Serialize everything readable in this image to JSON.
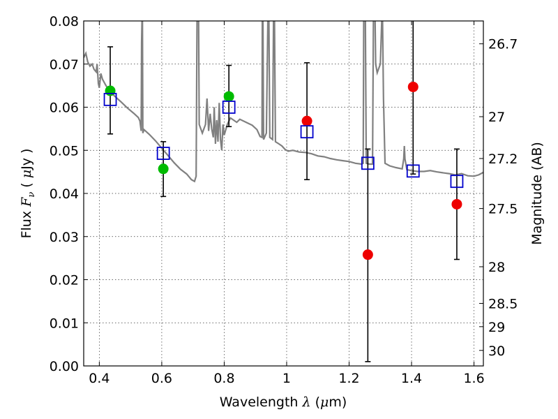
{
  "chart_data": {
    "type": "scatter",
    "title": "",
    "xlabel": "Wavelength  λ (μm)",
    "xlabel_parts": {
      "prefix": "Wavelength  ",
      "lambda": "λ",
      "unit_open": " (",
      "mu": "μ",
      "unit_rest": "m)"
    },
    "ylabel_parts": {
      "prefix": "Flux  ",
      "F": "F",
      "nu": "ν",
      "unit_open": "  ( ",
      "mu": "μ",
      "unit_rest": "Jy )"
    },
    "y2label": "Magnitude (AB)",
    "xlim": [
      0.35,
      1.63
    ],
    "ylim": [
      0,
      0.08
    ],
    "grid": true,
    "xticks": [
      0.4,
      0.6,
      0.8,
      1.0,
      1.2,
      1.4,
      1.6
    ],
    "xtick_labels": [
      "0.4",
      "0.6",
      "0.8",
      "1",
      "1.2",
      "1.4",
      "1.6"
    ],
    "yticks": [
      0,
      0.01,
      0.02,
      0.03,
      0.04,
      0.05,
      0.06,
      0.07,
      0.08
    ],
    "ytick_labels": [
      "0.00",
      "0.01",
      "0.02",
      "0.03",
      "0.04",
      "0.05",
      "0.06",
      "0.07",
      "0.08"
    ],
    "y2ticks": [
      {
        "label": "26.7",
        "flux": 0.0747
      },
      {
        "label": "27",
        "flux": 0.0578
      },
      {
        "label": "27.2",
        "flux": 0.0481
      },
      {
        "label": "27.5",
        "flux": 0.0365
      },
      {
        "label": "28",
        "flux": 0.023
      },
      {
        "label": "28.5",
        "flux": 0.0145
      },
      {
        "label": "29",
        "flux": 0.0091
      },
      {
        "label": "30",
        "flux": 0.0036
      }
    ],
    "colors": {
      "spectrum": "#808080",
      "model": "#0000cc",
      "green": "#00bb00",
      "red": "#ee0000",
      "errorbar": "#000000"
    },
    "spectrum": [
      [
        0.35,
        0.0715
      ],
      [
        0.357,
        0.0725
      ],
      [
        0.363,
        0.0705
      ],
      [
        0.37,
        0.0695
      ],
      [
        0.377,
        0.07
      ],
      [
        0.383,
        0.0688
      ],
      [
        0.39,
        0.0682
      ],
      [
        0.393,
        0.07
      ],
      [
        0.397,
        0.0655
      ],
      [
        0.4,
        0.0645
      ],
      [
        0.405,
        0.0678
      ],
      [
        0.41,
        0.0665
      ],
      [
        0.42,
        0.0652
      ],
      [
        0.43,
        0.064
      ],
      [
        0.45,
        0.0625
      ],
      [
        0.47,
        0.0612
      ],
      [
        0.49,
        0.0598
      ],
      [
        0.51,
        0.0586
      ],
      [
        0.525,
        0.0576
      ],
      [
        0.53,
        0.0568
      ],
      [
        0.534,
        0.0545
      ],
      [
        0.5355,
        0.075
      ],
      [
        0.537,
        0.081
      ],
      [
        0.538,
        0.081
      ],
      [
        0.5395,
        0.054
      ],
      [
        0.543,
        0.0548
      ],
      [
        0.56,
        0.0537
      ],
      [
        0.58,
        0.0522
      ],
      [
        0.6,
        0.0505
      ],
      [
        0.62,
        0.0488
      ],
      [
        0.64,
        0.0471
      ],
      [
        0.66,
        0.0456
      ],
      [
        0.68,
        0.0445
      ],
      [
        0.695,
        0.0432
      ],
      [
        0.705,
        0.0428
      ],
      [
        0.71,
        0.044
      ],
      [
        0.713,
        0.081
      ],
      [
        0.718,
        0.081
      ],
      [
        0.72,
        0.056
      ],
      [
        0.73,
        0.054
      ],
      [
        0.74,
        0.056
      ],
      [
        0.745,
        0.062
      ],
      [
        0.75,
        0.0545
      ],
      [
        0.755,
        0.0585
      ],
      [
        0.76,
        0.055
      ],
      [
        0.765,
        0.053
      ],
      [
        0.768,
        0.06
      ],
      [
        0.772,
        0.0515
      ],
      [
        0.776,
        0.057
      ],
      [
        0.78,
        0.052
      ],
      [
        0.784,
        0.061
      ],
      [
        0.788,
        0.0525
      ],
      [
        0.792,
        0.05
      ],
      [
        0.796,
        0.056
      ],
      [
        0.8,
        0.0535
      ],
      [
        0.81,
        0.056
      ],
      [
        0.82,
        0.0575
      ],
      [
        0.83,
        0.057
      ],
      [
        0.84,
        0.0565
      ],
      [
        0.85,
        0.0572
      ],
      [
        0.87,
        0.0565
      ],
      [
        0.89,
        0.0558
      ],
      [
        0.905,
        0.0548
      ],
      [
        0.915,
        0.0532
      ],
      [
        0.921,
        0.053
      ],
      [
        0.922,
        0.081
      ],
      [
        0.924,
        0.081
      ],
      [
        0.926,
        0.0525
      ],
      [
        0.935,
        0.054
      ],
      [
        0.94,
        0.081
      ],
      [
        0.943,
        0.081
      ],
      [
        0.946,
        0.053
      ],
      [
        0.955,
        0.0525
      ],
      [
        0.958,
        0.081
      ],
      [
        0.961,
        0.081
      ],
      [
        0.964,
        0.052
      ],
      [
        0.975,
        0.0515
      ],
      [
        0.985,
        0.051
      ],
      [
        0.995,
        0.0502
      ],
      [
        1.005,
        0.0498
      ],
      [
        1.02,
        0.05
      ],
      [
        1.04,
        0.0496
      ],
      [
        1.06,
        0.0495
      ],
      [
        1.08,
        0.0492
      ],
      [
        1.1,
        0.0487
      ],
      [
        1.12,
        0.0485
      ],
      [
        1.14,
        0.0481
      ],
      [
        1.16,
        0.0478
      ],
      [
        1.18,
        0.0476
      ],
      [
        1.2,
        0.0474
      ],
      [
        1.22,
        0.047
      ],
      [
        1.24,
        0.0468
      ],
      [
        1.245,
        0.047
      ],
      [
        1.247,
        0.081
      ],
      [
        1.252,
        0.081
      ],
      [
        1.255,
        0.047
      ],
      [
        1.265,
        0.0468
      ],
      [
        1.275,
        0.0468
      ],
      [
        1.278,
        0.081
      ],
      [
        1.283,
        0.081
      ],
      [
        1.285,
        0.07
      ],
      [
        1.29,
        0.068
      ],
      [
        1.3,
        0.07
      ],
      [
        1.305,
        0.081
      ],
      [
        1.307,
        0.081
      ],
      [
        1.31,
        0.062
      ],
      [
        1.315,
        0.047
      ],
      [
        1.33,
        0.0464
      ],
      [
        1.35,
        0.046
      ],
      [
        1.37,
        0.0457
      ],
      [
        1.375,
        0.048
      ],
      [
        1.377,
        0.051
      ],
      [
        1.379,
        0.048
      ],
      [
        1.385,
        0.0455
      ],
      [
        1.4,
        0.0453
      ],
      [
        1.42,
        0.0451
      ],
      [
        1.44,
        0.0451
      ],
      [
        1.46,
        0.0453
      ],
      [
        1.48,
        0.045
      ],
      [
        1.5,
        0.0448
      ],
      [
        1.52,
        0.0446
      ],
      [
        1.54,
        0.0443
      ],
      [
        1.56,
        0.0446
      ],
      [
        1.58,
        0.0441
      ],
      [
        1.6,
        0.044
      ],
      [
        1.615,
        0.0443
      ],
      [
        1.625,
        0.0447
      ],
      [
        1.63,
        0.0449
      ]
    ],
    "model_points": [
      {
        "x": 0.435,
        "y": 0.0618
      },
      {
        "x": 0.605,
        "y": 0.0493
      },
      {
        "x": 0.815,
        "y": 0.06
      },
      {
        "x": 1.065,
        "y": 0.0543
      },
      {
        "x": 1.26,
        "y": 0.047
      },
      {
        "x": 1.405,
        "y": 0.0452
      },
      {
        "x": 1.545,
        "y": 0.0428
      }
    ],
    "observed": [
      {
        "x": 0.435,
        "y": 0.0638,
        "low": 0.0538,
        "high": 0.074,
        "color": "green"
      },
      {
        "x": 0.605,
        "y": 0.0457,
        "low": 0.0393,
        "high": 0.052,
        "color": "green"
      },
      {
        "x": 0.815,
        "y": 0.0625,
        "low": 0.0555,
        "high": 0.0697,
        "color": "green"
      },
      {
        "x": 1.065,
        "y": 0.0568,
        "low": 0.0432,
        "high": 0.0703,
        "color": "red"
      },
      {
        "x": 1.26,
        "y": 0.0258,
        "low": 0.001,
        "high": 0.0503,
        "color": "red"
      },
      {
        "x": 1.405,
        "y": 0.0647,
        "low": 0.0445,
        "high": 0.0815,
        "color": "red"
      },
      {
        "x": 1.545,
        "y": 0.0375,
        "low": 0.0247,
        "high": 0.0503,
        "color": "red"
      }
    ]
  }
}
